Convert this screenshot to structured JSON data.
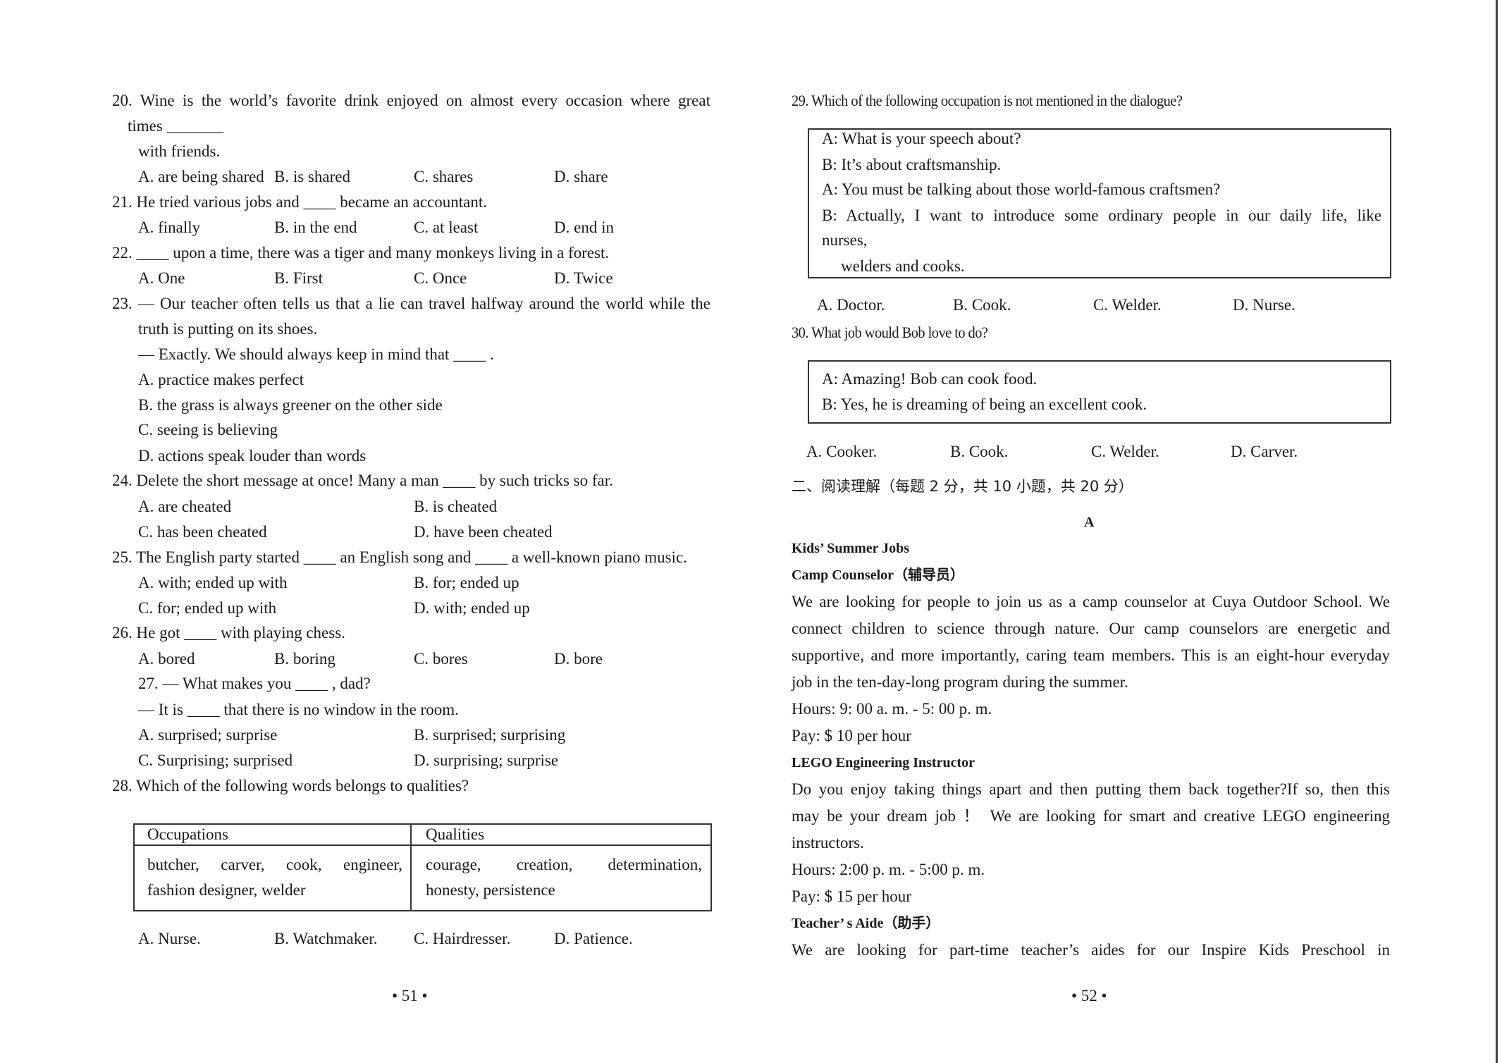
{
  "left": {
    "q20": {
      "lines": [
        "20. Wine is the world’s favorite drink enjoyed on almost every occasion where great",
        "times _______",
        "with friends."
      ],
      "options": [
        "A. are being shared",
        "B. is shared",
        "C. shares",
        "D. share"
      ]
    },
    "q21": {
      "lines": [
        "21. He tried various jobs and ____ became an accountant."
      ],
      "options": [
        "A. finally",
        "B. in the end",
        "C. at least",
        "D. end in"
      ]
    },
    "q22": {
      "lines": [
        "22. ____ upon a time, there was a tiger and many monkeys living in a forest."
      ],
      "options": [
        "A. One",
        "B. First",
        "C. Once",
        "D. Twice"
      ]
    },
    "q23": {
      "lines": [
        "23. — Our teacher often tells us that a lie can travel halfway around the world while the",
        "truth is putting on its shoes.",
        "— Exactly. We should always keep in mind that ____ ."
      ],
      "options": [
        "A. practice makes perfect",
        "B. the grass is always greener on the other side",
        "C. seeing is believing",
        "D. actions speak louder than words"
      ]
    },
    "q24": {
      "lines": [
        "24. Delete the short message at once! Many a man ____ by such tricks so far."
      ],
      "options": [
        "A. are cheated",
        "B. is cheated",
        "C. has been cheated",
        "D. have been cheated"
      ]
    },
    "q25": {
      "lines": [
        "25. The English party started ____ an English song and ____ a well-known piano music."
      ],
      "options": [
        "A. with; ended up with",
        "B. for; ended up",
        "C. for; ended up with",
        "D. with; ended up"
      ]
    },
    "q26": {
      "lines": [
        "26. He got ____ with playing chess."
      ],
      "options": [
        "A. bored",
        "B. boring",
        "C. bores",
        "D. bore"
      ]
    },
    "q27": {
      "lines": [
        "27. — What makes you ____ , dad?",
        "— It is ____ that there is no window in the room."
      ],
      "options": [
        "A. surprised; surprise",
        "B. surprised; surprising",
        "C. Surprising; surprised",
        "D. surprising; surprise"
      ]
    },
    "q28": {
      "lines": [
        "28. Which of the following words belongs to qualities?"
      ],
      "table": {
        "headers": [
          "Occupations",
          "Qualities"
        ],
        "cells": [
          [
            "butcher, carver, cook, engineer,",
            "fashion designer, welder"
          ],
          [
            "courage, creation, determination,",
            "honesty, persistence"
          ]
        ]
      },
      "options": [
        "A. Nurse.",
        "B. Watchmaker.",
        "C. Hairdresser.",
        "D. Patience."
      ]
    },
    "page_number": "• 51 •"
  },
  "right": {
    "q29": {
      "stem": "29. Which of the following occupation is not mentioned in the dialogue?",
      "dialogue": [
        "A: What is your speech about?",
        "B: It’s about craftsmanship.",
        "A: You must be talking about those world-famous craftsmen?",
        "B: Actually, I want to introduce some ordinary people in our daily life, like",
        "nurses,",
        "welders and cooks."
      ],
      "options": [
        "A. Doctor.",
        "B. Cook.",
        "C. Welder.",
        "D. Nurse."
      ]
    },
    "q30": {
      "stem": "30. What job would Bob love to do?",
      "dialogue": [
        "A: Amazing! Bob can cook food.",
        "B: Yes, he is dreaming of being an excellent cook."
      ],
      "options": [
        "A. Cooker.",
        "B. Cook.",
        "C. Welder.",
        "D. Carver."
      ]
    },
    "section_heading": "二、阅读理解（每题 2 分，共 10 小题，共  20 分）",
    "passage_label": "A",
    "passage_title": "Kids’ Summer Jobs",
    "job1": {
      "title": "Camp Counselor（辅导员）",
      "lines": [
        "We are looking for people to join us as a camp counselor at Cuya Outdoor School. We",
        "connect children to science through nature. Our camp counselors are energetic and",
        "supportive, and more importantly, caring team members. This is an eight-hour everyday",
        "job in the ten-day-long program during the summer."
      ],
      "hours": "Hours: 9: 00 a. m. - 5: 00 p. m.",
      "pay": "Pay: $ 10 per hour"
    },
    "job2": {
      "title": "LEGO Engineering Instructor",
      "lines": [
        "Do you enjoy taking things apart and then putting them back together?If so, then this",
        "may be your dream job ！  We are looking for smart and creative LEGO engineering",
        "instructors."
      ],
      "hours": "Hours: 2:00 p. m. - 5:00 p. m.",
      "pay": "Pay: $ 15 per hour"
    },
    "job3": {
      "title": "Teacher’ s Aide（助手）",
      "lines": [
        "We are looking for part-time teacher’s aides for our Inspire Kids Preschool in"
      ]
    },
    "page_number": "• 52 •"
  }
}
